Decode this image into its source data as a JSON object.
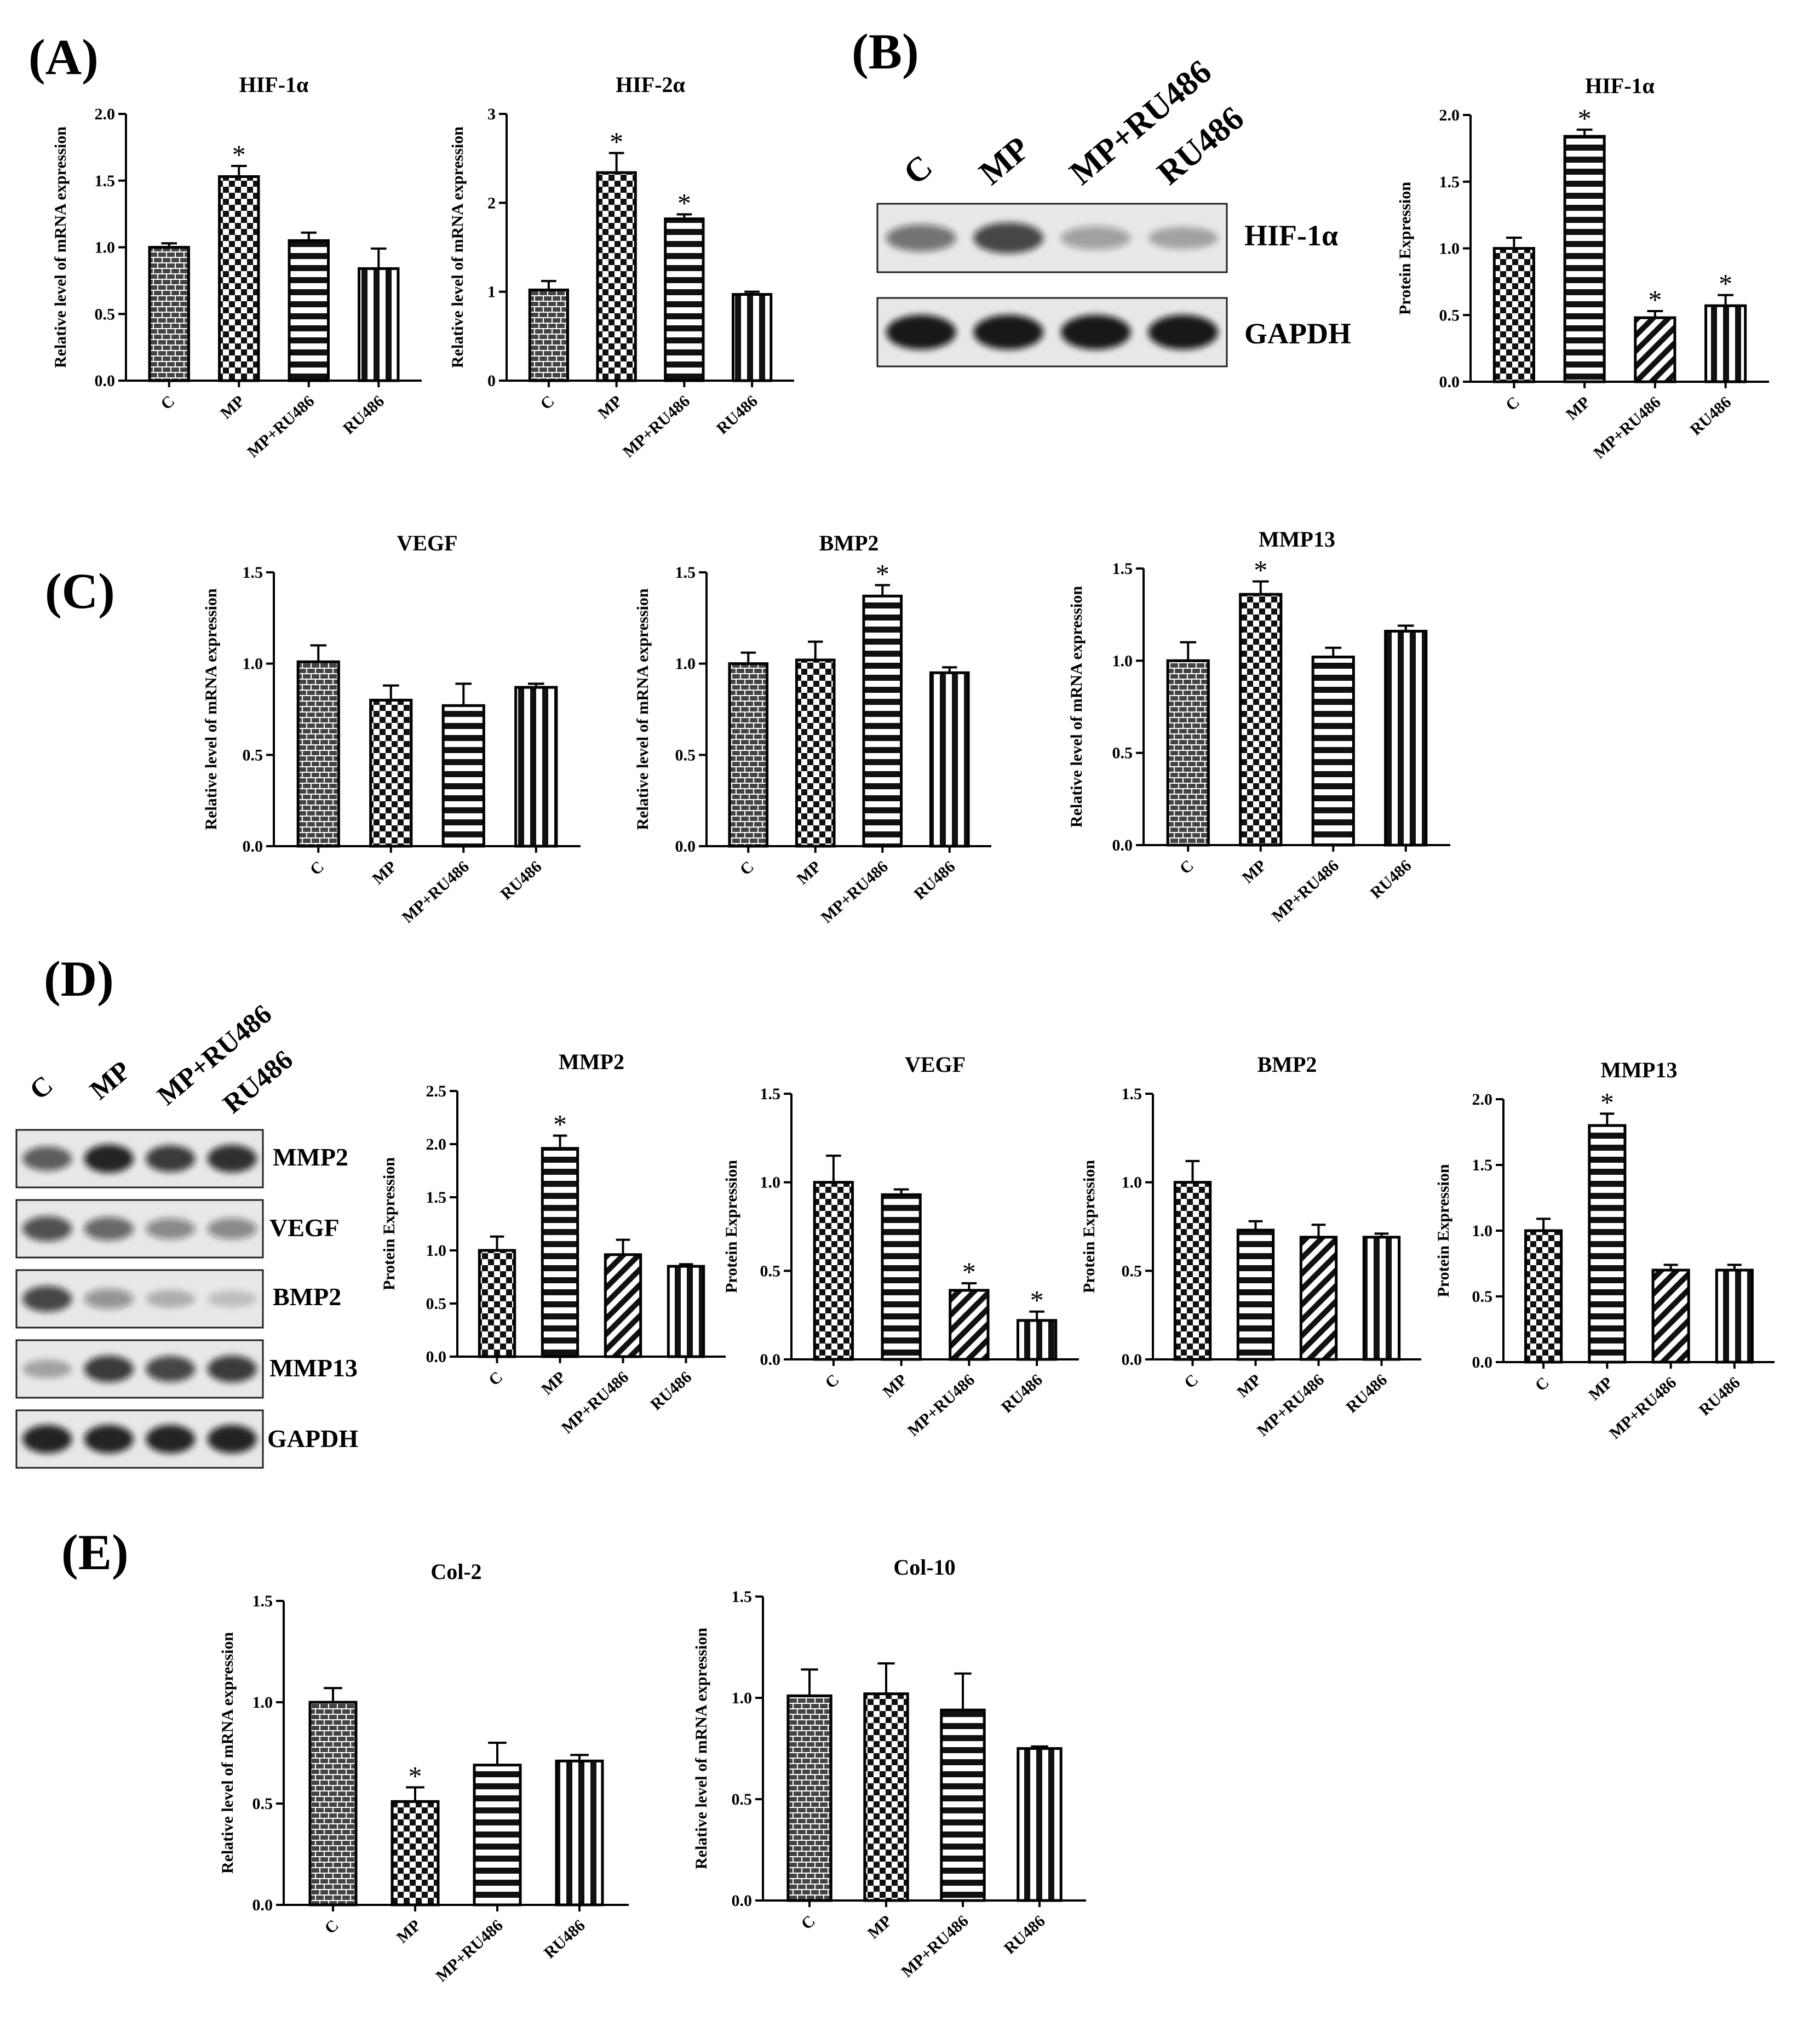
{
  "panel_labels": {
    "A": "(A)",
    "B": "(B)",
    "C": "(C)",
    "D": "(D)",
    "E": "(E)"
  },
  "colors": {
    "bar_stroke": "#000000",
    "band": "#111111",
    "membrane": "#e8e8e8"
  },
  "blot_B": {
    "lanes": [
      "C",
      "MP",
      "MP+RU486",
      "RU486"
    ],
    "bands": [
      "HIF-1α",
      "GAPDH"
    ],
    "intensities": [
      [
        0.55,
        0.75,
        0.35,
        0.3
      ],
      [
        0.95,
        0.95,
        0.95,
        0.95
      ]
    ]
  },
  "blot_D": {
    "lanes": [
      "C",
      "MP",
      "MP+RU486",
      "RU486"
    ],
    "bands": [
      "MMP2",
      "VEGF",
      "BMP2",
      "MMP13",
      "GAPDH"
    ],
    "intensities": [
      [
        0.65,
        0.9,
        0.8,
        0.85
      ],
      [
        0.7,
        0.6,
        0.45,
        0.45
      ],
      [
        0.75,
        0.4,
        0.25,
        0.18
      ],
      [
        0.3,
        0.8,
        0.75,
        0.8
      ],
      [
        0.9,
        0.9,
        0.9,
        0.9
      ]
    ]
  },
  "chart_data": [
    {
      "id": "A1",
      "type": "bar",
      "title": "HIF-1α",
      "ylabel": "Relative level of mRNA expression",
      "categories": [
        "C",
        "MP",
        "MP+RU486",
        "RU486"
      ],
      "values": [
        1.0,
        1.53,
        1.05,
        0.84
      ],
      "errors": [
        0.03,
        0.08,
        0.06,
        0.15
      ],
      "patterns": [
        "brick",
        "check",
        "hline",
        "vline"
      ],
      "significant": [
        false,
        true,
        false,
        false
      ],
      "ylim": [
        0,
        2.0
      ],
      "yticks": [
        0.0,
        0.5,
        1.0,
        1.5,
        2.0
      ],
      "tick_labels": [
        "0.0",
        "0.5",
        "1.0",
        "1.5",
        "2.0"
      ]
    },
    {
      "id": "A2",
      "type": "bar",
      "title": "HIF-2α",
      "ylabel": "Relative level of mRNA expression",
      "categories": [
        "C",
        "MP",
        "MP+RU486",
        "RU486"
      ],
      "values": [
        1.02,
        2.34,
        1.82,
        0.97
      ],
      "errors": [
        0.1,
        0.22,
        0.05,
        0.03
      ],
      "patterns": [
        "brick",
        "check",
        "hline",
        "vline"
      ],
      "significant": [
        false,
        true,
        true,
        false
      ],
      "ylim": [
        0,
        3
      ],
      "yticks": [
        0,
        1,
        2,
        3
      ],
      "tick_labels": [
        "0",
        "1",
        "2",
        "3"
      ]
    },
    {
      "id": "B1",
      "type": "bar",
      "title": "HIF-1α",
      "ylabel": "Protein Expression",
      "categories": [
        "C",
        "MP",
        "MP+RU486",
        "RU486"
      ],
      "values": [
        1.0,
        1.84,
        0.48,
        0.57
      ],
      "errors": [
        0.08,
        0.05,
        0.05,
        0.08
      ],
      "patterns": [
        "check",
        "hline",
        "diag",
        "vline"
      ],
      "significant": [
        false,
        true,
        true,
        true
      ],
      "ylim": [
        0,
        2.0
      ],
      "yticks": [
        0.0,
        0.5,
        1.0,
        1.5,
        2.0
      ],
      "tick_labels": [
        "0.0",
        "0.5",
        "1.0",
        "1.5",
        "2.0"
      ]
    },
    {
      "id": "C1",
      "type": "bar",
      "title": "VEGF",
      "ylabel": "Relative level of mRNA expression",
      "categories": [
        "C",
        "MP",
        "MP+RU486",
        "RU486"
      ],
      "values": [
        1.01,
        0.8,
        0.77,
        0.87
      ],
      "errors": [
        0.09,
        0.08,
        0.12,
        0.02
      ],
      "patterns": [
        "brick",
        "check",
        "hline",
        "vline"
      ],
      "significant": [
        false,
        false,
        false,
        false
      ],
      "ylim": [
        0,
        1.5
      ],
      "yticks": [
        0.0,
        0.5,
        1.0,
        1.5
      ],
      "tick_labels": [
        "0.0",
        "0.5",
        "1.0",
        "1.5"
      ]
    },
    {
      "id": "C2",
      "type": "bar",
      "title": "BMP2",
      "ylabel": "Relative level of mRNA expression",
      "categories": [
        "C",
        "MP",
        "MP+RU486",
        "RU486"
      ],
      "values": [
        1.0,
        1.02,
        1.37,
        0.95
      ],
      "errors": [
        0.06,
        0.1,
        0.06,
        0.03
      ],
      "patterns": [
        "brick",
        "check",
        "hline",
        "vline"
      ],
      "significant": [
        false,
        false,
        true,
        false
      ],
      "ylim": [
        0,
        1.5
      ],
      "yticks": [
        0.0,
        0.5,
        1.0,
        1.5
      ],
      "tick_labels": [
        "0.0",
        "0.5",
        "1.0",
        "1.5"
      ]
    },
    {
      "id": "C3",
      "type": "bar",
      "title": "MMP13",
      "ylabel": "Relative level of mRNA expression",
      "categories": [
        "C",
        "MP",
        "MP+RU486",
        "RU486"
      ],
      "values": [
        1.0,
        1.36,
        1.02,
        1.16
      ],
      "errors": [
        0.1,
        0.07,
        0.05,
        0.03
      ],
      "patterns": [
        "brick",
        "check",
        "hline",
        "vline"
      ],
      "significant": [
        false,
        true,
        false,
        false
      ],
      "ylim": [
        0,
        1.5
      ],
      "yticks": [
        0.0,
        0.5,
        1.0,
        1.5
      ],
      "tick_labels": [
        "0.0",
        "0.5",
        "1.0",
        "1.5"
      ]
    },
    {
      "id": "D1",
      "type": "bar",
      "title": "MMP2",
      "ylabel": "Protein Expression",
      "categories": [
        "C",
        "MP",
        "MP+RU486",
        "RU486"
      ],
      "values": [
        1.0,
        1.96,
        0.96,
        0.85
      ],
      "errors": [
        0.13,
        0.12,
        0.14,
        0.02
      ],
      "patterns": [
        "check",
        "hline",
        "diag",
        "vline"
      ],
      "significant": [
        false,
        true,
        false,
        false
      ],
      "ylim": [
        0,
        2.5
      ],
      "yticks": [
        0.0,
        0.5,
        1.0,
        1.5,
        2.0,
        2.5
      ],
      "tick_labels": [
        "0.0",
        "0.5",
        "1.0",
        "1.5",
        "2.0",
        "2.5"
      ]
    },
    {
      "id": "D2",
      "type": "bar",
      "title": "VEGF",
      "ylabel": "Protein Expression",
      "categories": [
        "C",
        "MP",
        "MP+RU486",
        "RU486"
      ],
      "values": [
        1.0,
        0.93,
        0.39,
        0.22
      ],
      "errors": [
        0.15,
        0.03,
        0.04,
        0.05
      ],
      "patterns": [
        "check",
        "hline",
        "diag",
        "vline"
      ],
      "significant": [
        false,
        false,
        true,
        true
      ],
      "ylim": [
        0,
        1.5
      ],
      "yticks": [
        0.0,
        0.5,
        1.0,
        1.5
      ],
      "tick_labels": [
        "0.0",
        "0.5",
        "1.0",
        "1.5"
      ]
    },
    {
      "id": "D3",
      "type": "bar",
      "title": "BMP2",
      "ylabel": "Protein Expression",
      "categories": [
        "C",
        "MP",
        "MP+RU486",
        "RU486"
      ],
      "values": [
        1.0,
        0.73,
        0.69,
        0.69
      ],
      "errors": [
        0.12,
        0.05,
        0.07,
        0.02
      ],
      "patterns": [
        "check",
        "hline",
        "diag",
        "vline"
      ],
      "significant": [
        false,
        false,
        false,
        false
      ],
      "ylim": [
        0,
        1.5
      ],
      "yticks": [
        0.0,
        0.5,
        1.0,
        1.5
      ],
      "tick_labels": [
        "0.0",
        "0.5",
        "1.0",
        "1.5"
      ]
    },
    {
      "id": "D4",
      "type": "bar",
      "title": "MMP13",
      "ylabel": "Protein Expression",
      "categories": [
        "C",
        "MP",
        "MP+RU486",
        "RU486"
      ],
      "values": [
        1.0,
        1.8,
        0.7,
        0.7
      ],
      "errors": [
        0.09,
        0.09,
        0.04,
        0.04
      ],
      "patterns": [
        "check",
        "hline",
        "diag",
        "vline"
      ],
      "significant": [
        false,
        true,
        false,
        false
      ],
      "ylim": [
        0,
        2.0
      ],
      "yticks": [
        0.0,
        0.5,
        1.0,
        1.5,
        2.0
      ],
      "tick_labels": [
        "0.0",
        "0.5",
        "1.0",
        "1.5",
        "2.0"
      ]
    },
    {
      "id": "E1",
      "type": "bar",
      "title": "Col-2",
      "ylabel": "Relative level of mRNA expression",
      "categories": [
        "C",
        "MP",
        "MP+RU486",
        "RU486"
      ],
      "values": [
        1.0,
        0.51,
        0.69,
        0.71
      ],
      "errors": [
        0.07,
        0.07,
        0.11,
        0.03
      ],
      "patterns": [
        "brick",
        "check",
        "hline",
        "vline"
      ],
      "significant": [
        false,
        true,
        false,
        false
      ],
      "ylim": [
        0,
        1.5
      ],
      "yticks": [
        0.0,
        0.5,
        1.0,
        1.5
      ],
      "tick_labels": [
        "0.0",
        "0.5",
        "1.0",
        "1.5"
      ]
    },
    {
      "id": "E2",
      "type": "bar",
      "title": "Col-10",
      "ylabel": "Relative level of mRNA expression",
      "categories": [
        "C",
        "MP",
        "MP+RU486",
        "RU486"
      ],
      "values": [
        1.01,
        1.02,
        0.94,
        0.75
      ],
      "errors": [
        0.13,
        0.15,
        0.18,
        0.01
      ],
      "patterns": [
        "brick",
        "check",
        "hline",
        "vline"
      ],
      "significant": [
        false,
        false,
        false,
        false
      ],
      "ylim": [
        0,
        1.5
      ],
      "yticks": [
        0.0,
        0.5,
        1.0,
        1.5
      ],
      "tick_labels": [
        "0.0",
        "0.5",
        "1.0",
        "1.5"
      ]
    }
  ]
}
